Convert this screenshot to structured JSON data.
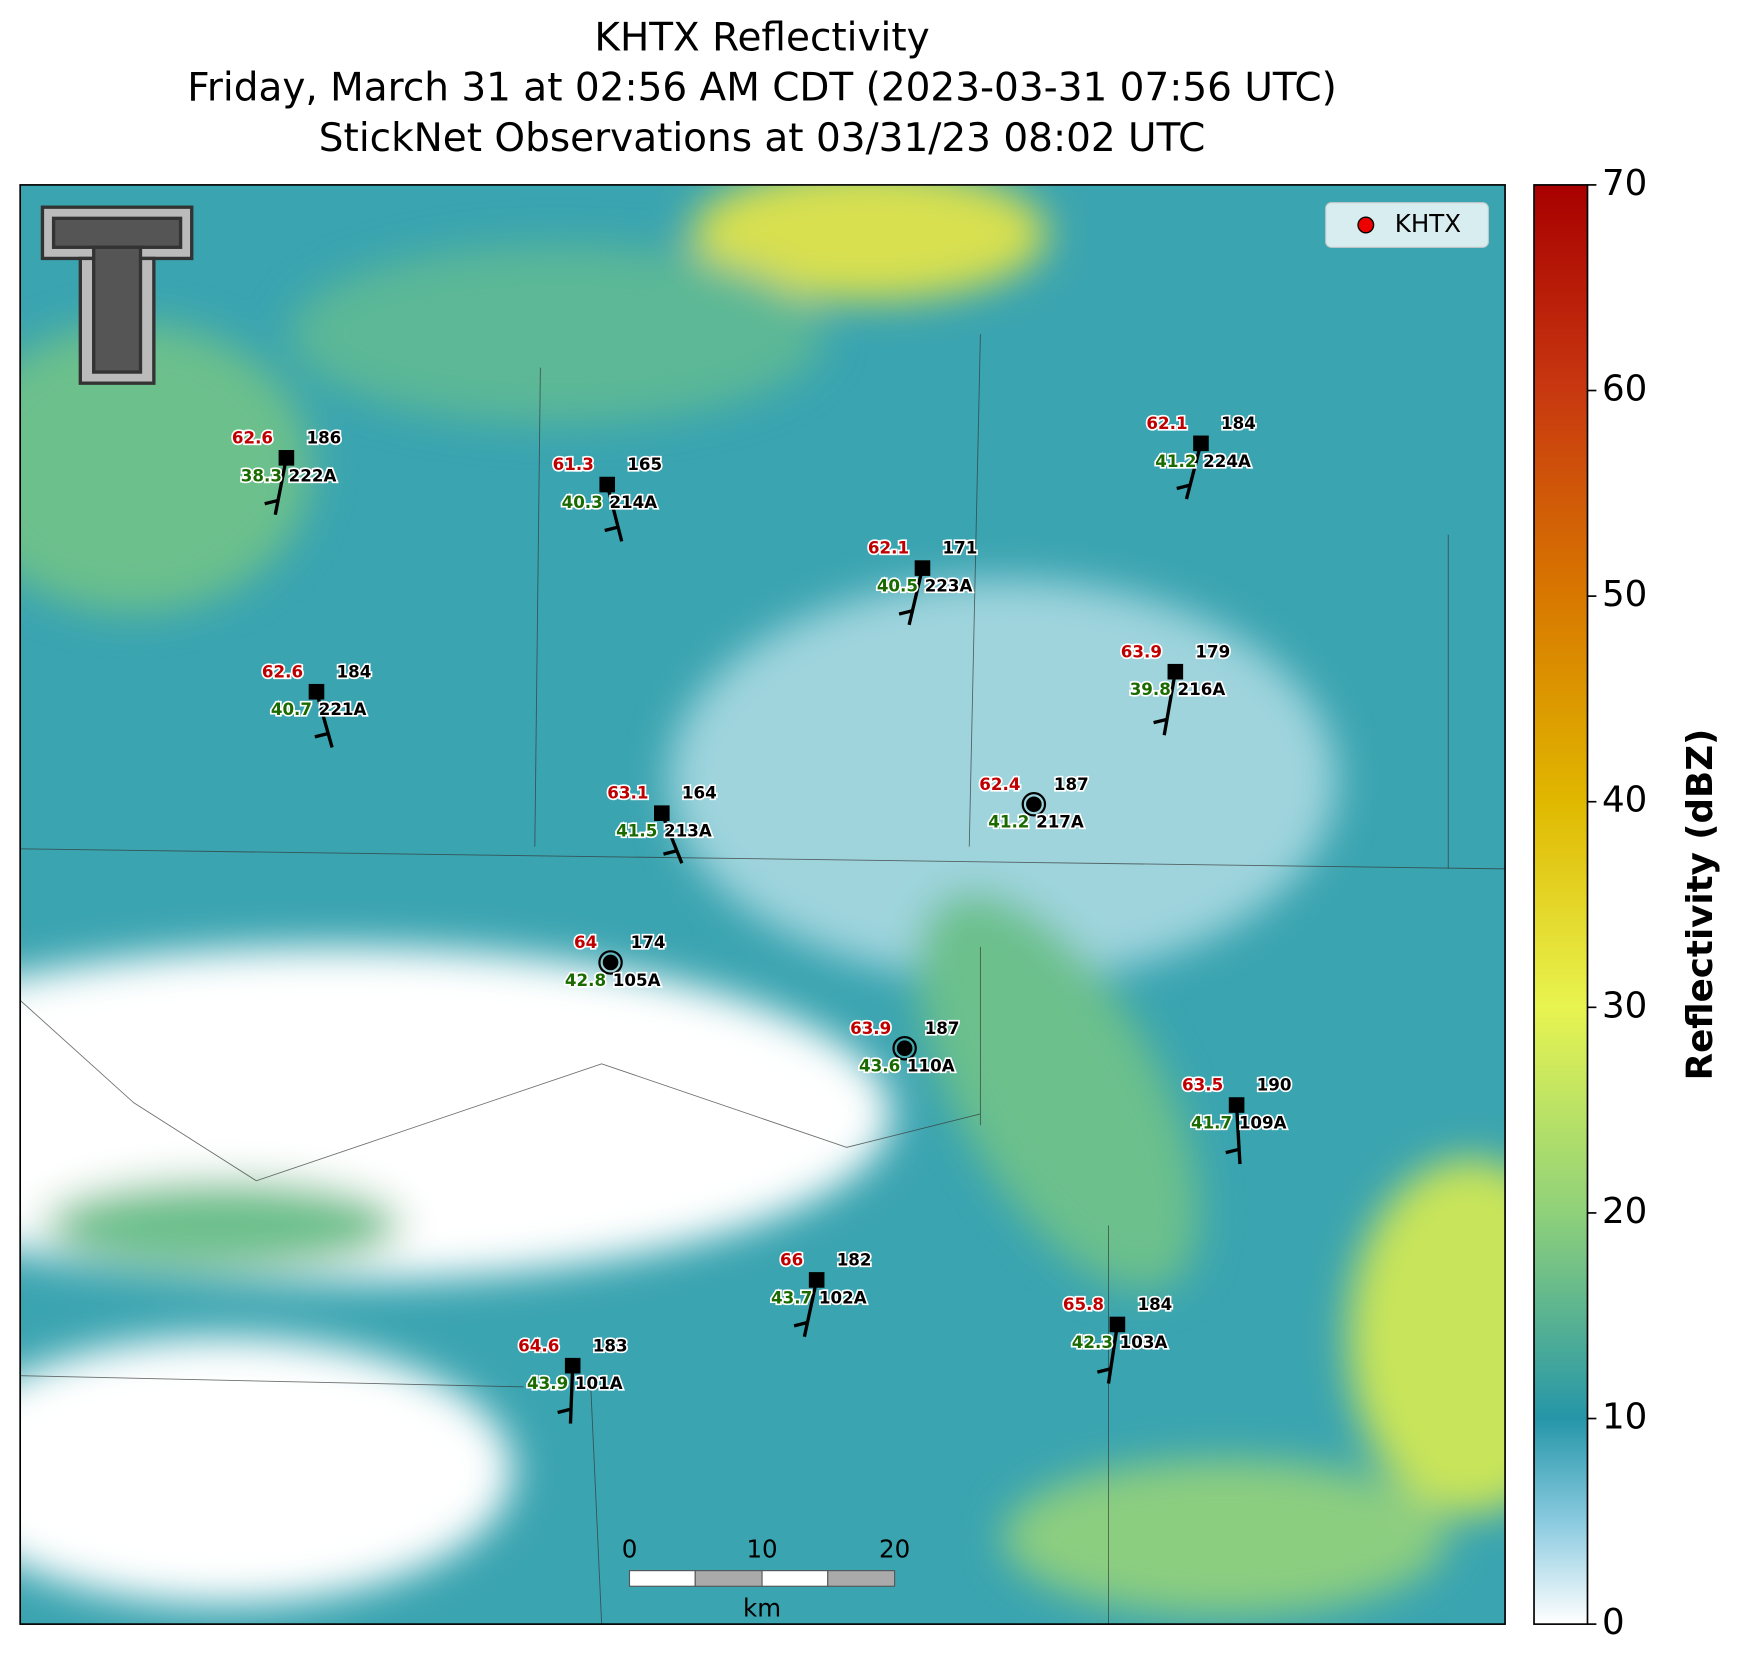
{
  "title": [
    "KHTX Reflectivity",
    "Friday, March 31 at 02:56 AM CDT (2023-03-31 07:56 UTC)",
    "StickNet Observations at 03/31/23 08:02 UTC"
  ],
  "legend": "KHTX",
  "colorbar": {
    "label": "Reflectivity (dBZ)",
    "lim": [
      0,
      70
    ],
    "ticks": [
      0,
      10,
      20,
      30,
      40,
      50,
      60,
      70
    ]
  },
  "scale_bar": {
    "ticks": [
      0,
      10,
      20
    ],
    "unit": "km"
  },
  "stations": [
    {
      "id": "222A",
      "temperature": 62.6,
      "dewpoint": 38.3,
      "pressure": 186
    },
    {
      "id": "214A",
      "temperature": 61.3,
      "dewpoint": 40.3,
      "pressure": 165
    },
    {
      "id": "223A",
      "temperature": 62.1,
      "dewpoint": 40.5,
      "pressure": 171
    },
    {
      "id": "224A",
      "temperature": 62.1,
      "dewpoint": 41.2,
      "pressure": 184
    },
    {
      "id": "221A",
      "temperature": 62.6,
      "dewpoint": 40.7,
      "pressure": 184
    },
    {
      "id": "216A",
      "temperature": 63.9,
      "dewpoint": 39.8,
      "pressure": 179
    },
    {
      "id": "213A",
      "temperature": 63.1,
      "dewpoint": 41.5,
      "pressure": 164
    },
    {
      "id": "217A",
      "temperature": 62.4,
      "dewpoint": 41.2,
      "pressure": 187
    },
    {
      "id": "105A",
      "temperature": 64.0,
      "dewpoint": 42.8,
      "pressure": 174
    },
    {
      "id": "110A",
      "temperature": 63.9,
      "dewpoint": 43.6,
      "pressure": 187
    },
    {
      "id": "109A",
      "temperature": 63.5,
      "dewpoint": 41.7,
      "pressure": 190
    },
    {
      "id": "102A",
      "temperature": 66.0,
      "dewpoint": 43.7,
      "pressure": 182
    },
    {
      "id": "103A",
      "temperature": 65.8,
      "dewpoint": 42.3,
      "pressure": 184
    },
    {
      "id": "101A",
      "temperature": 64.6,
      "dewpoint": 43.9,
      "pressure": 183
    }
  ]
}
